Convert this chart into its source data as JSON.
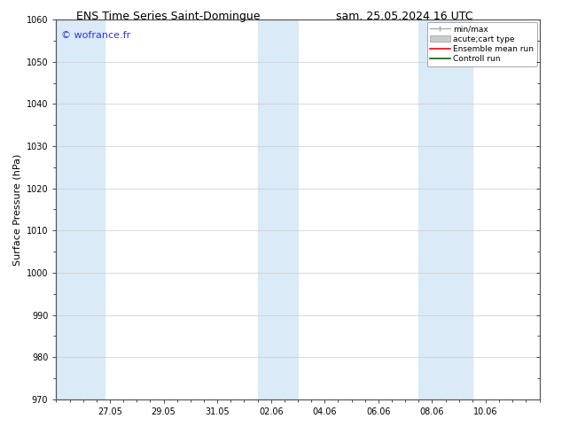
{
  "title_left": "ENS Time Series Saint-Domingue",
  "title_right": "sam. 25.05.2024 16 UTC",
  "ylabel": "Surface Pressure (hPa)",
  "ylim": [
    970,
    1060
  ],
  "yticks": [
    970,
    980,
    990,
    1000,
    1010,
    1020,
    1030,
    1040,
    1050,
    1060
  ],
  "xtick_labels": [
    "27.05",
    "29.05",
    "31.05",
    "02.06",
    "04.06",
    "06.06",
    "08.06",
    "10.06"
  ],
  "xtick_positions": [
    2,
    4,
    6,
    8,
    10,
    12,
    14,
    16
  ],
  "xlim": [
    0,
    18
  ],
  "bg_color": "#ffffff",
  "plot_bg_color": "#ffffff",
  "shaded_bands": [
    {
      "x_start": 0.0,
      "x_end": 1.0,
      "color": "#daeaf7"
    },
    {
      "x_start": 1.5,
      "x_end": 2.5,
      "color": "#daeaf7"
    },
    {
      "x_start": 7.5,
      "x_end": 8.0,
      "color": "#daeaf7"
    },
    {
      "x_start": 8.5,
      "x_end": 9.0,
      "color": "#daeaf7"
    },
    {
      "x_start": 13.5,
      "x_end": 14.0,
      "color": "#daeaf7"
    },
    {
      "x_start": 14.5,
      "x_end": 15.5,
      "color": "#daeaf7"
    }
  ],
  "watermark": "© wofrance.fr",
  "watermark_color": "#3333cc",
  "legend_items": [
    {
      "label": "min/max",
      "color": "#aaaaaa",
      "type": "errorbar"
    },
    {
      "label": "acute;cart type",
      "color": "#cccccc",
      "type": "bar"
    },
    {
      "label": "Ensemble mean run",
      "color": "#ff0000",
      "type": "line"
    },
    {
      "label": "Controll run",
      "color": "#006600",
      "type": "line"
    }
  ],
  "tick_fontsize": 7,
  "label_fontsize": 8,
  "title_fontsize": 9,
  "watermark_fontsize": 8
}
